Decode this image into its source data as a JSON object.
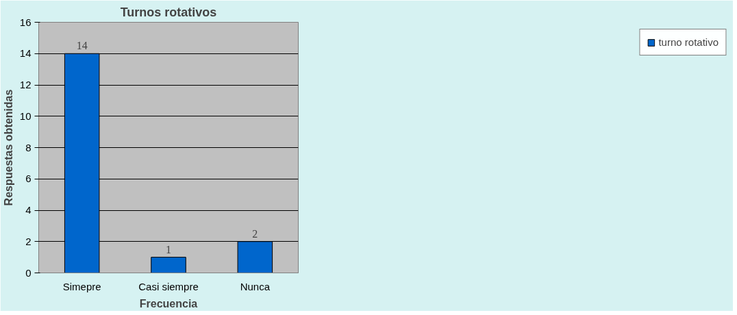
{
  "chart_data": {
    "type": "bar",
    "title": "Turnos rotativos",
    "xlabel": "Frecuencia",
    "ylabel": "Respuestas obtenidas",
    "categories": [
      "Simepre",
      "Casi siempre",
      "Nunca"
    ],
    "series": [
      {
        "name": "turno rotativo",
        "color": "#0066cc",
        "values": [
          14,
          1,
          2
        ]
      }
    ],
    "ylim": [
      0,
      16
    ],
    "yticks": [
      0,
      2,
      4,
      6,
      8,
      10,
      12,
      14,
      16
    ],
    "grid": "y",
    "legend": "right",
    "data_labels": true
  }
}
